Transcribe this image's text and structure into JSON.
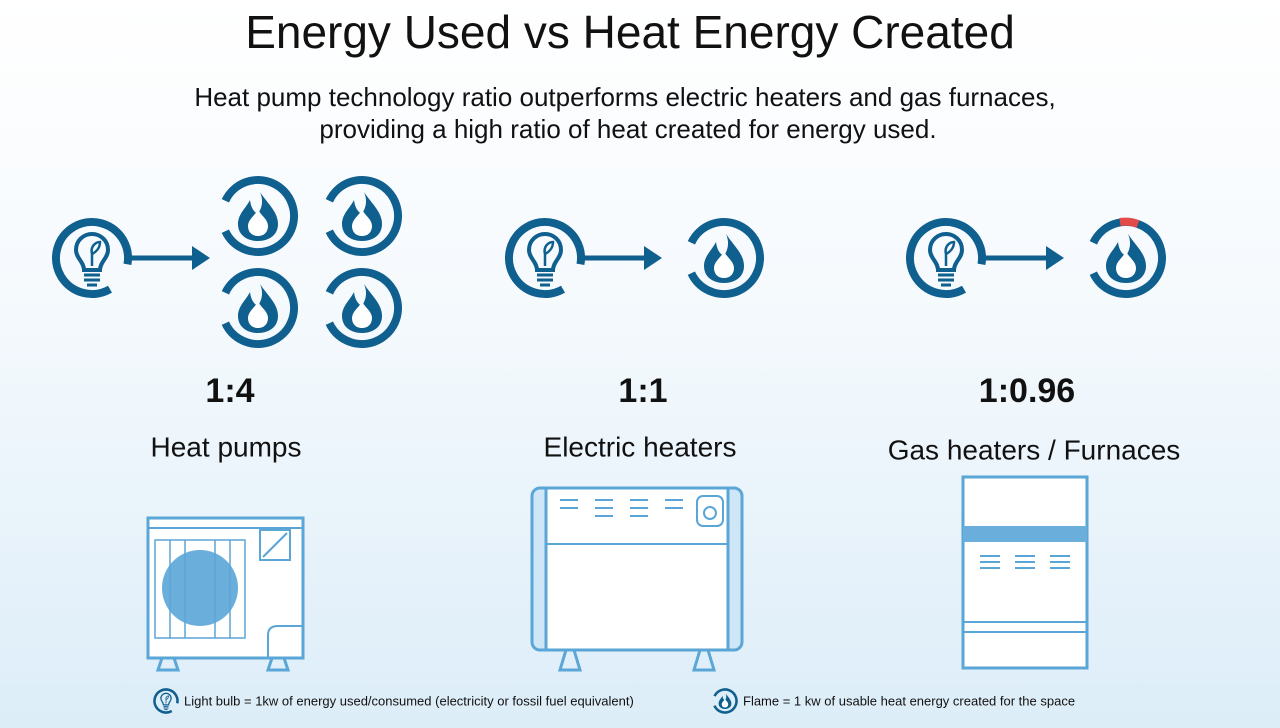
{
  "title": "Energy Used vs Heat Energy Created",
  "subtitle": [
    "Heat pump technology ratio outperforms electric heaters and gas furnaces,",
    "providing a high ratio of heat created for energy used."
  ],
  "columns": [
    {
      "ratio": "1:4",
      "label": "Heat pumps"
    },
    {
      "ratio": "1:1",
      "label": "Electric heaters"
    },
    {
      "ratio": "1:0.96",
      "label": "Gas heaters / Furnaces"
    }
  ],
  "legend": [
    "Light bulb = 1kw of energy used/consumed (electricity or fossil fuel equivalent)",
    "Flame = 1 kw of usable heat energy created for the space"
  ]
}
